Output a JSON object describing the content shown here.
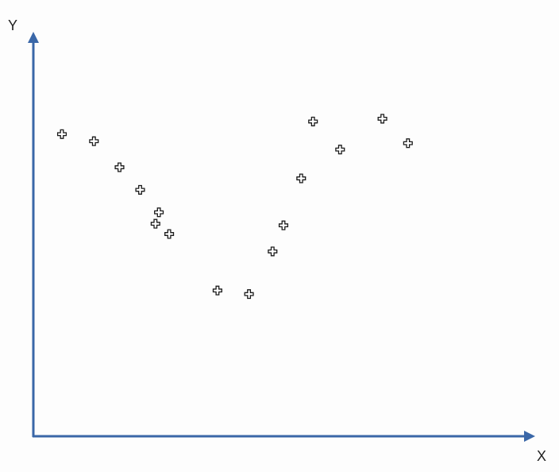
{
  "chart_data": {
    "type": "scatter",
    "title": "",
    "xlabel": "X",
    "ylabel": "Y",
    "xlim": [
      0,
      100
    ],
    "ylim": [
      0,
      100
    ],
    "grid": false,
    "legend": "none",
    "axis_color": "#3a67a8",
    "marker_style": "plus-outline",
    "marker_color": "#1a1a1a",
    "series": [
      {
        "x": [
          5.8,
          12.3,
          17.5,
          21.7,
          25.5,
          24.8,
          27.6,
          37.4,
          43.8,
          48.6,
          50.8,
          54.4,
          56.8,
          62.3,
          70.9,
          76.1
        ],
        "y": [
          76.5,
          74.7,
          68.1,
          62.4,
          56.7,
          53.8,
          51.2,
          36.9,
          36.0,
          46.8,
          53.4,
          65.3,
          79.7,
          72.6,
          80.4,
          74.2
        ]
      }
    ]
  }
}
